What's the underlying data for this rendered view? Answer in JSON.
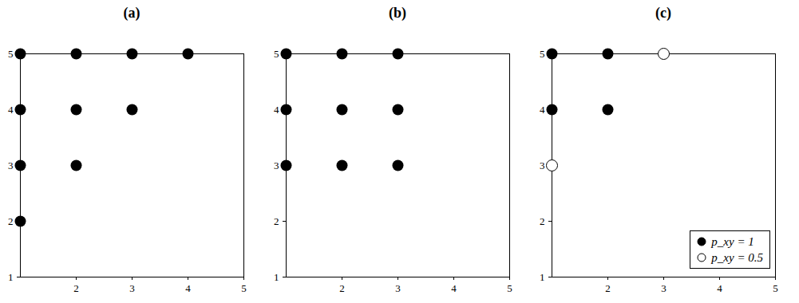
{
  "chart_data": [
    {
      "type": "scatter",
      "title": "(a)",
      "xlim": [
        1,
        5
      ],
      "ylim": [
        1,
        5
      ],
      "xticks": [
        2,
        3,
        4,
        5
      ],
      "yticks": [
        1,
        2,
        3,
        4,
        5
      ],
      "series": [
        {
          "color": "#000000",
          "marker": "filled",
          "x": [
            1,
            2,
            3,
            4,
            1,
            2,
            3,
            1,
            2,
            1
          ],
          "y": [
            5,
            5,
            5,
            5,
            4,
            4,
            4,
            3,
            3,
            2
          ]
        }
      ]
    },
    {
      "type": "scatter",
      "title": "(b)",
      "xlim": [
        1,
        5
      ],
      "ylim": [
        1,
        5
      ],
      "xticks": [
        2,
        3,
        4,
        5
      ],
      "yticks": [
        1,
        2,
        3,
        4,
        5
      ],
      "series": [
        {
          "color": "#000000",
          "marker": "filled",
          "x": [
            1,
            2,
            3,
            1,
            2,
            3,
            1,
            2,
            3
          ],
          "y": [
            5,
            5,
            5,
            4,
            4,
            4,
            3,
            3,
            3
          ]
        }
      ]
    },
    {
      "type": "scatter",
      "title": "(c)",
      "xlim": [
        1,
        5
      ],
      "ylim": [
        1,
        5
      ],
      "xticks": [
        2,
        3,
        4,
        5
      ],
      "yticks": [
        1,
        2,
        3,
        4,
        5
      ],
      "legend": "lower right",
      "series": [
        {
          "name": "p_xy = 1",
          "color": "#000000",
          "marker": "filled",
          "x": [
            1,
            2,
            1,
            2
          ],
          "y": [
            5,
            5,
            4,
            4
          ]
        },
        {
          "name": "p_xy = 0.5",
          "color": "#000000",
          "marker": "open",
          "x": [
            3,
            1
          ],
          "y": [
            5,
            3
          ]
        }
      ]
    }
  ]
}
